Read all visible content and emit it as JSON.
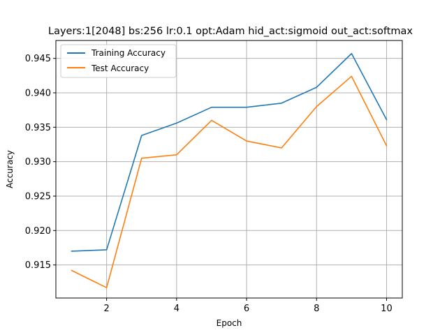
{
  "chart_data": {
    "type": "line",
    "title": "Layers:1[2048] bs:256 lr:0.1 opt:Adam hid_act:sigmoid out_act:softmax",
    "xlabel": "Epoch",
    "ylabel": "Accuracy",
    "x": [
      1,
      2,
      3,
      4,
      5,
      6,
      7,
      8,
      9,
      10
    ],
    "xlim": [
      0.55,
      10.45
    ],
    "ylim": [
      0.9102,
      0.9476
    ],
    "xticks": [
      2,
      4,
      6,
      8,
      10
    ],
    "yticks": [
      0.915,
      0.92,
      0.925,
      0.93,
      0.935,
      0.94,
      0.945
    ],
    "xtick_labels": [
      "2",
      "4",
      "6",
      "8",
      "10"
    ],
    "ytick_labels": [
      "0.915",
      "0.920",
      "0.925",
      "0.930",
      "0.935",
      "0.940",
      "0.945"
    ],
    "grid": true,
    "legend_position": "top-left",
    "series": [
      {
        "name": "Training Accuracy",
        "color": "#1f77b4",
        "values": [
          0.917,
          0.9172,
          0.9338,
          0.9356,
          0.9379,
          0.9379,
          0.9385,
          0.9408,
          0.9457,
          0.9361
        ]
      },
      {
        "name": "Test Accuracy",
        "color": "#ff7f0e",
        "values": [
          0.9142,
          0.9117,
          0.9305,
          0.931,
          0.936,
          0.933,
          0.932,
          0.938,
          0.9424,
          0.9323
        ]
      }
    ]
  }
}
